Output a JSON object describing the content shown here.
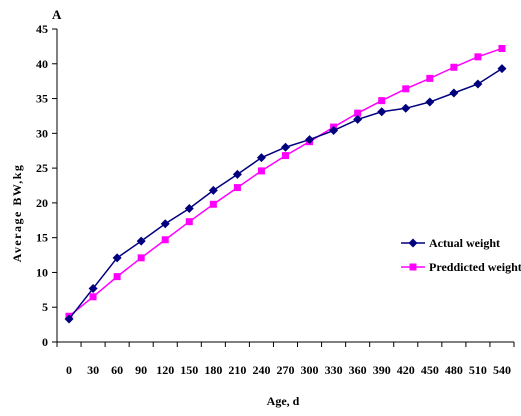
{
  "panel_label": "A",
  "chart_data": {
    "type": "line",
    "xlabel": "Age, d",
    "ylabel": "Average BW,kg",
    "x": [
      0,
      30,
      60,
      90,
      120,
      150,
      180,
      210,
      240,
      270,
      300,
      330,
      360,
      390,
      420,
      450,
      480,
      510,
      540
    ],
    "ylim": [
      0,
      45
    ],
    "yticks": [
      0,
      5,
      10,
      15,
      20,
      25,
      30,
      35,
      40,
      45
    ],
    "grid": false,
    "legend_position": "right",
    "series": [
      {
        "name": "Actual weight",
        "color": "#00007f",
        "marker": "diamond",
        "values": [
          3.3,
          7.7,
          12.1,
          14.5,
          17.0,
          19.2,
          21.8,
          24.1,
          26.5,
          28.0,
          29.1,
          30.4,
          32.0,
          33.1,
          33.6,
          34.5,
          35.8,
          37.1,
          39.3
        ]
      },
      {
        "name": "Preddicted weight",
        "color": "#ff00ff",
        "marker": "square",
        "values": [
          3.7,
          6.5,
          9.4,
          12.1,
          14.7,
          17.3,
          19.8,
          22.2,
          24.6,
          26.8,
          28.8,
          30.9,
          32.9,
          34.7,
          36.4,
          37.9,
          39.5,
          41.0,
          42.2
        ]
      }
    ]
  }
}
